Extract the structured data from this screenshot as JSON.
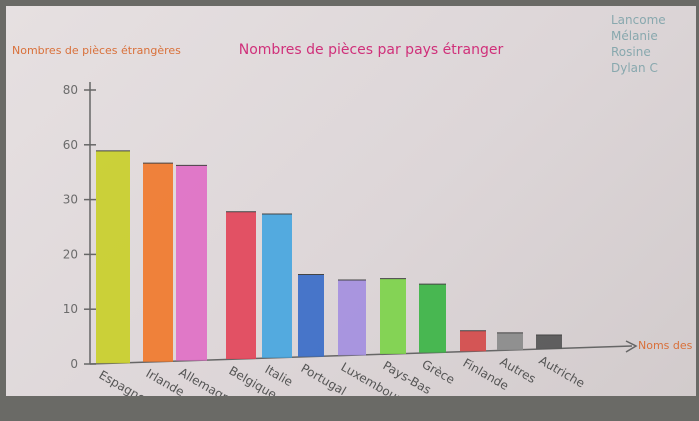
{
  "chart_data": {
    "type": "bar",
    "title": "Nombres de pièces par pays étranger",
    "ylabel": "Nombres de pièces étrangères",
    "xlabel": "Noms des pays",
    "categories": [
      "Espagne",
      "Irlande",
      "Allemagne",
      "Belgique",
      "Italie",
      "Portugal",
      "Luxembourg",
      "Pays-Bas",
      "Grèce",
      "Finlande",
      "Autres",
      "Autriche"
    ],
    "values": [
      62,
      58,
      57,
      43,
      42,
      24,
      22,
      22,
      20,
      6,
      5,
      4
    ],
    "ylim": [
      0,
      80
    ],
    "yticks": [
      "0",
      "10",
      "20",
      "30",
      "60",
      "80"
    ],
    "colors": [
      "#c9cf2a",
      "#f07a2c",
      "#e070c6",
      "#e2455a",
      "#46a6df",
      "#3a6cc8",
      "#a48fe0",
      "#7dd24a",
      "#3cb445",
      "#d44a4a",
      "#8a8a8a",
      "#555555"
    ],
    "grid": false,
    "legend": "none"
  },
  "authors": [
    "Lancome",
    "Mélanie",
    "Rosine",
    "Dylan C"
  ]
}
